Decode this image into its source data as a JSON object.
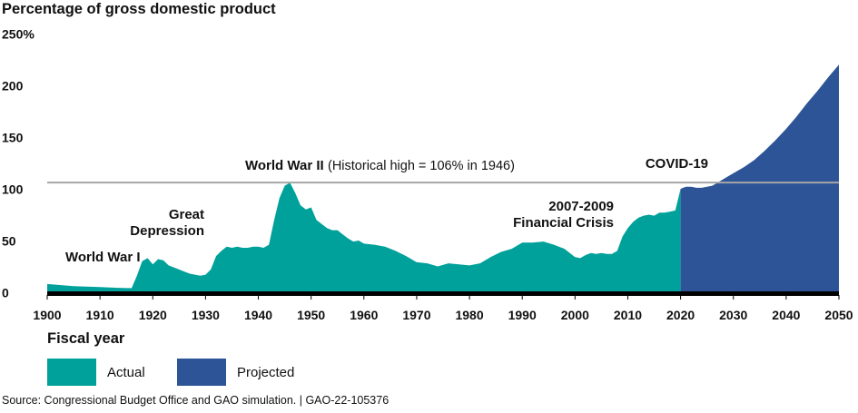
{
  "chart_data": {
    "type": "area",
    "title": "",
    "ylabel": "Percentage of gross domestic product",
    "xlabel": "Fiscal year",
    "xlim": [
      1900,
      2050
    ],
    "ylim": [
      0,
      250
    ],
    "y_ticks": [
      "250%",
      "200",
      "150",
      "100",
      "50",
      "0"
    ],
    "y_tick_values": [
      250,
      200,
      150,
      100,
      50,
      0
    ],
    "x_ticks": [
      "1900",
      "1910",
      "1920",
      "1930",
      "1940",
      "1950",
      "1960",
      "1970",
      "1980",
      "1990",
      "2000",
      "2010",
      "2020",
      "2030",
      "2040",
      "2050"
    ],
    "reference_line": {
      "value": 106
    },
    "series": [
      {
        "name": "Actual",
        "color": "#00a19a",
        "x": [
          1900,
          1905,
          1910,
          1915,
          1916,
          1917,
          1918,
          1919,
          1920,
          1921,
          1922,
          1923,
          1924,
          1925,
          1926,
          1927,
          1928,
          1929,
          1930,
          1931,
          1932,
          1933,
          1934,
          1935,
          1936,
          1937,
          1938,
          1939,
          1940,
          1941,
          1942,
          1943,
          1944,
          1945,
          1946,
          1947,
          1948,
          1949,
          1950,
          1951,
          1952,
          1953,
          1954,
          1955,
          1956,
          1957,
          1958,
          1959,
          1960,
          1962,
          1964,
          1966,
          1968,
          1970,
          1972,
          1974,
          1976,
          1978,
          1980,
          1982,
          1984,
          1986,
          1988,
          1990,
          1992,
          1994,
          1996,
          1998,
          2000,
          2001,
          2002,
          2003,
          2004,
          2005,
          2006,
          2007,
          2008,
          2009,
          2010,
          2011,
          2012,
          2013,
          2014,
          2015,
          2016,
          2017,
          2018,
          2019,
          2020
        ],
        "values": [
          8,
          6,
          5,
          4,
          4,
          16,
          30,
          33,
          27,
          32,
          31,
          26,
          24,
          22,
          20,
          18,
          17,
          16,
          17,
          22,
          35,
          40,
          44,
          43,
          44,
          43,
          43,
          44,
          44,
          43,
          46,
          70,
          91,
          103,
          106,
          96,
          84,
          80,
          82,
          70,
          66,
          62,
          60,
          60,
          56,
          52,
          49,
          50,
          47,
          46,
          44,
          40,
          35,
          29,
          28,
          25,
          28,
          27,
          26,
          28,
          34,
          39,
          42,
          48,
          48,
          49,
          46,
          42,
          34,
          33,
          36,
          38,
          37,
          38,
          37,
          37,
          40,
          54,
          62,
          68,
          72,
          74,
          75,
          74,
          77,
          77,
          78,
          79,
          100
        ]
      },
      {
        "name": "Projected",
        "color": "#2c5496",
        "x": [
          2020,
          2021,
          2022,
          2023,
          2024,
          2025,
          2026,
          2027,
          2028,
          2029,
          2030,
          2032,
          2034,
          2036,
          2038,
          2040,
          2042,
          2044,
          2046,
          2048,
          2050
        ],
        "values": [
          100,
          102,
          102,
          101,
          101,
          102,
          103,
          106,
          109,
          112,
          115,
          121,
          128,
          137,
          147,
          158,
          170,
          183,
          195,
          208,
          220
        ]
      }
    ],
    "annotations": [
      {
        "text": "World War I",
        "x": 1917
      },
      {
        "text": "Great Depression",
        "x": 1930
      },
      {
        "text": "World War II",
        "x": 1944
      },
      {
        "text": "(Historical high = 106% in 1946)",
        "x": 1971
      },
      {
        "text": "2007-2009 Financial Crisis",
        "x": 2000
      },
      {
        "text": "COVID-19",
        "x": 2025
      }
    ],
    "grid": false,
    "legend_position": "bottom-left"
  },
  "legend": {
    "actual": "Actual",
    "projected": "Projected"
  },
  "source": "Source: Congressional Budget Office and GAO simulation.  |  GAO-22-105376"
}
